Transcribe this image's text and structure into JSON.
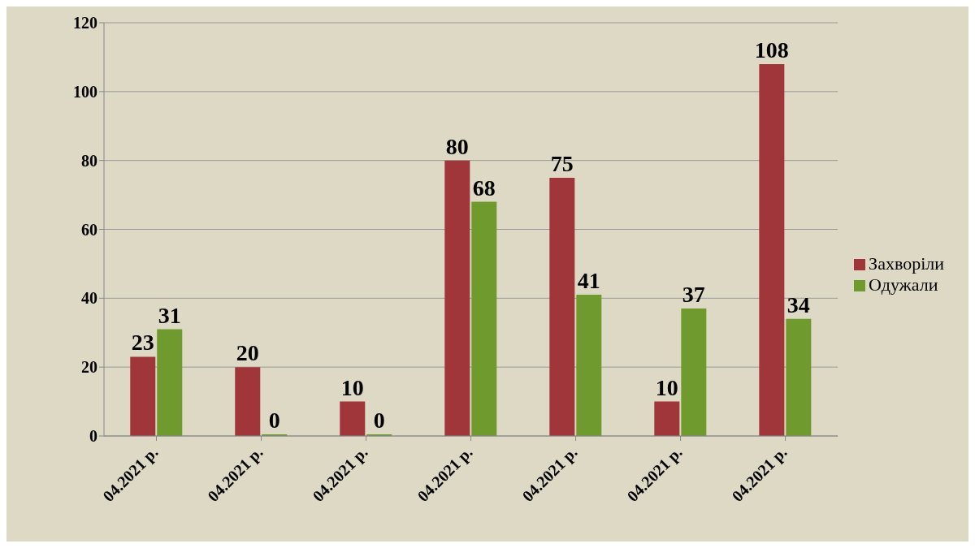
{
  "chart_data": {
    "type": "bar",
    "categories": [
      "04.2021 р.",
      "04.2021 р.",
      "04.2021 р.",
      "04.2021 р.",
      "04.2021 р.",
      "04.2021 р.",
      "04.2021 р."
    ],
    "series": [
      {
        "name": "Захворіли",
        "color": "#a0363a",
        "values": [
          23,
          20,
          10,
          80,
          75,
          10,
          108
        ]
      },
      {
        "name": "Одужали",
        "color": "#6f9a2e",
        "values": [
          31,
          0,
          0,
          68,
          41,
          37,
          34
        ]
      }
    ],
    "ylim": [
      0,
      120
    ],
    "yticks": [
      0,
      20,
      40,
      60,
      80,
      100,
      120
    ],
    "grid": "y",
    "legend": "right",
    "data_labels": true
  }
}
